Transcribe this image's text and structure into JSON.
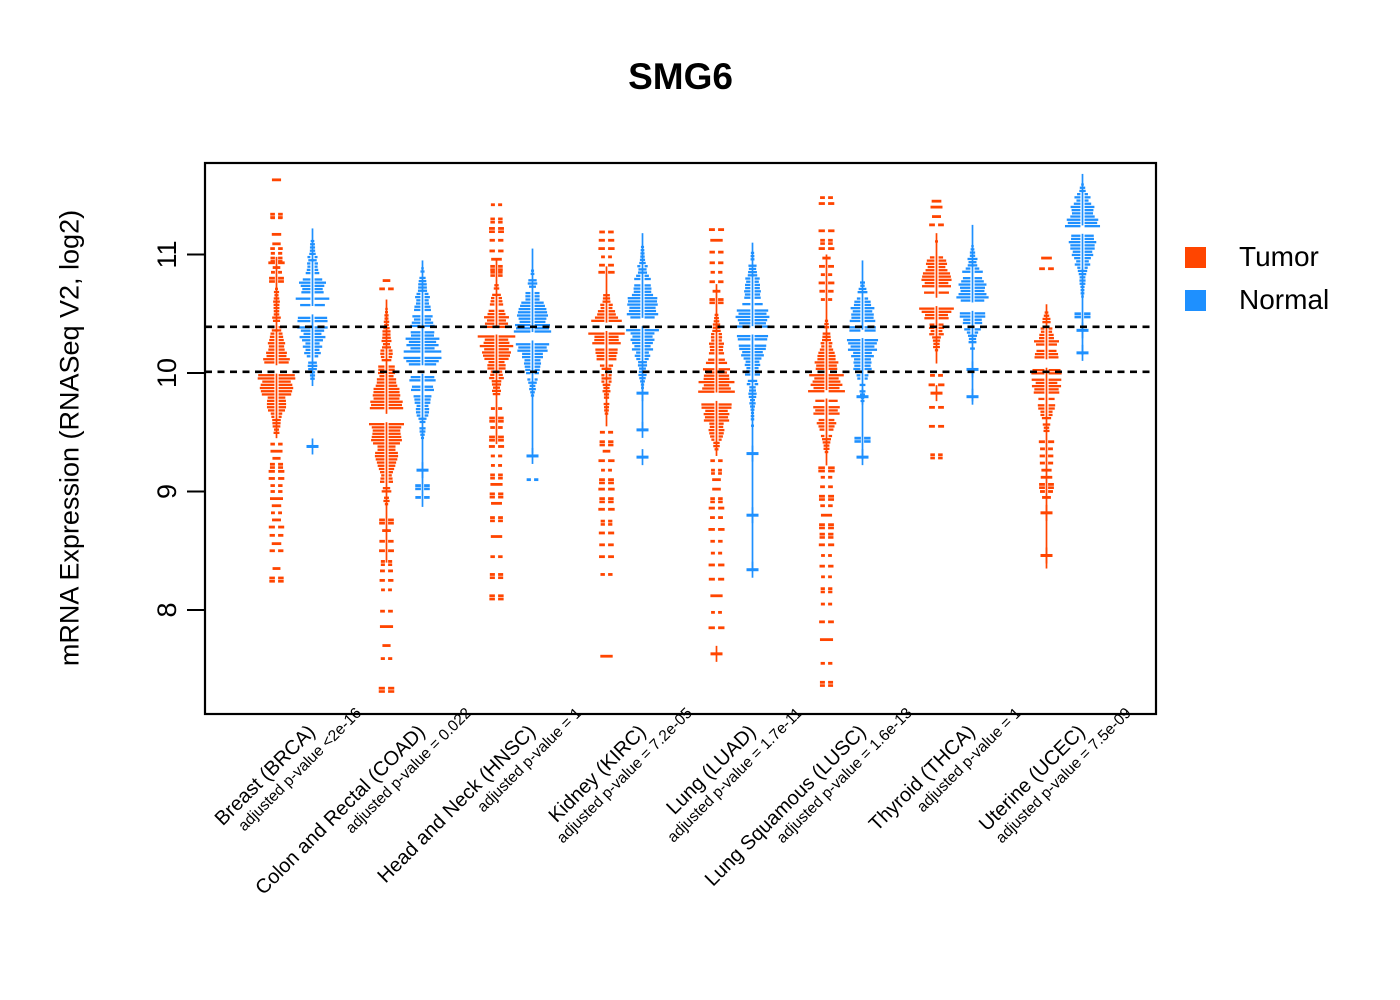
{
  "title": "SMG6",
  "y_axis": {
    "label": "mRNA Expression (RNASeq V2, log2)",
    "ticks": [
      8,
      9,
      10,
      11
    ]
  },
  "legend": {
    "items": [
      {
        "label": "Tumor",
        "color": "#FF4500"
      },
      {
        "label": "Normal",
        "color": "#1E90FF"
      }
    ]
  },
  "chart_data": {
    "type": "violin",
    "title": "SMG6",
    "ylabel": "mRNA Expression (RNASeq V2, log2)",
    "y_ticks": [
      8,
      9,
      10,
      11
    ],
    "ylim": [
      7.1,
      11.8
    ],
    "grid": false,
    "legend_position": "right",
    "reference_lines": [
      10.39,
      10.01
    ],
    "series_colors": {
      "tumor": "#FF4500",
      "normal": "#1E90FF"
    },
    "groups": [
      {
        "label": "Breast (BRCA)",
        "pvalue_label": "adjusted p-value <2e-16",
        "tumor": {
          "median": 10.03,
          "stem": [
            9.45,
            10.98
          ],
          "body": [
            [
              10.72,
              0.12
            ],
            [
              10.5,
              0.22
            ],
            [
              10.3,
              0.38
            ],
            [
              10.15,
              0.75
            ],
            [
              10.03,
              1.0
            ],
            [
              9.9,
              0.9
            ],
            [
              9.75,
              0.6
            ],
            [
              9.6,
              0.3
            ],
            [
              9.48,
              0.12
            ]
          ],
          "outliers": [
            11.63,
            11.34,
            11.31,
            11.17,
            11.09,
            11.05,
            11.01,
            10.97,
            10.93,
            10.89,
            10.85,
            10.8,
            9.4,
            9.34,
            9.28,
            9.23,
            9.17,
            9.11,
            9.05,
            9.0,
            8.94,
            8.88,
            8.82,
            8.76,
            8.7,
            8.63,
            8.56,
            8.5,
            8.35,
            8.27
          ],
          "plus_outliers": []
        },
        "normal": {
          "median": 10.53,
          "stem": [
            9.89,
            11.22
          ],
          "body": [
            [
              11.15,
              0.08
            ],
            [
              11.0,
              0.25
            ],
            [
              10.85,
              0.5
            ],
            [
              10.7,
              0.85
            ],
            [
              10.55,
              1.0
            ],
            [
              10.4,
              0.8
            ],
            [
              10.25,
              0.55
            ],
            [
              10.1,
              0.3
            ],
            [
              9.95,
              0.1
            ]
          ],
          "outliers": [],
          "plus_outliers": [
            9.38
          ]
        }
      },
      {
        "label": "Colon and Rectal (COAD)",
        "pvalue_label": "adjusted p-value = 0.022",
        "tumor": {
          "median": 9.62,
          "stem": [
            8.4,
            10.62
          ],
          "body": [
            [
              10.55,
              0.1
            ],
            [
              10.3,
              0.25
            ],
            [
              10.05,
              0.45
            ],
            [
              9.85,
              0.75
            ],
            [
              9.65,
              1.0
            ],
            [
              9.45,
              0.8
            ],
            [
              9.25,
              0.5
            ],
            [
              9.05,
              0.3
            ],
            [
              8.9,
              0.12
            ]
          ],
          "outliers": [
            10.78,
            10.71,
            8.76,
            8.67,
            8.58,
            8.5,
            8.41,
            8.33,
            8.25,
            8.17,
            7.99,
            7.86,
            7.7,
            7.59,
            7.34
          ],
          "plus_outliers": []
        },
        "normal": {
          "median": 10.03,
          "stem": [
            8.87,
            10.95
          ],
          "body": [
            [
              10.92,
              0.07
            ],
            [
              10.7,
              0.3
            ],
            [
              10.5,
              0.6
            ],
            [
              10.3,
              0.9
            ],
            [
              10.12,
              1.0
            ],
            [
              9.95,
              0.75
            ],
            [
              9.8,
              0.5
            ],
            [
              9.62,
              0.25
            ],
            [
              9.46,
              0.1
            ]
          ],
          "outliers": [
            9.05,
            8.95
          ],
          "plus_outliers": [
            9.18
          ]
        }
      },
      {
        "label": "Head and Neck (HNSC)",
        "pvalue_label": "adjusted p-value = 1",
        "tumor": {
          "median": 10.36,
          "stem": [
            9.4,
            10.95
          ],
          "body": [
            [
              10.75,
              0.12
            ],
            [
              10.6,
              0.35
            ],
            [
              10.48,
              0.7
            ],
            [
              10.36,
              1.0
            ],
            [
              10.2,
              0.8
            ],
            [
              10.05,
              0.5
            ],
            [
              9.9,
              0.3
            ],
            [
              9.78,
              0.15
            ]
          ],
          "outliers": [
            11.42,
            11.3,
            11.22,
            11.12,
            11.03,
            10.96,
            10.9,
            10.85,
            9.7,
            9.62,
            9.54,
            9.46,
            9.38,
            9.3,
            9.22,
            9.14,
            9.06,
            8.98,
            8.9,
            8.78,
            8.62,
            8.45,
            8.3,
            8.12
          ],
          "plus_outliers": []
        },
        "normal": {
          "median": 10.31,
          "stem": [
            9.32,
            11.05
          ],
          "body": [
            [
              10.9,
              0.08
            ],
            [
              10.72,
              0.3
            ],
            [
              10.55,
              0.7
            ],
            [
              10.38,
              1.0
            ],
            [
              10.22,
              0.85
            ],
            [
              10.07,
              0.55
            ],
            [
              9.92,
              0.25
            ],
            [
              9.8,
              0.1
            ]
          ],
          "outliers": [
            9.1
          ],
          "plus_outliers": [
            9.3
          ]
        }
      },
      {
        "label": "Kidney (KIRC)",
        "pvalue_label": "adjusted p-value = 7.2e-05",
        "tumor": {
          "median": 10.39,
          "stem": [
            9.55,
            10.9
          ],
          "body": [
            [
              10.72,
              0.1
            ],
            [
              10.6,
              0.3
            ],
            [
              10.48,
              0.7
            ],
            [
              10.36,
              1.0
            ],
            [
              10.22,
              0.7
            ],
            [
              10.05,
              0.4
            ],
            [
              9.85,
              0.2
            ],
            [
              9.65,
              0.1
            ]
          ],
          "outliers": [
            11.19,
            11.12,
            11.05,
            10.98,
            10.91,
            10.85,
            9.5,
            9.42,
            9.34,
            9.26,
            9.18,
            9.1,
            9.02,
            8.94,
            8.85,
            8.75,
            8.65,
            8.55,
            8.45,
            8.3,
            7.61
          ],
          "plus_outliers": []
        },
        "normal": {
          "median": 10.43,
          "stem": [
            9.52,
            11.18
          ],
          "body": [
            [
              11.1,
              0.06
            ],
            [
              10.92,
              0.25
            ],
            [
              10.75,
              0.55
            ],
            [
              10.58,
              0.9
            ],
            [
              10.42,
              1.0
            ],
            [
              10.25,
              0.65
            ],
            [
              10.1,
              0.35
            ],
            [
              9.95,
              0.15
            ],
            [
              9.87,
              0.07
            ]
          ],
          "outliers": [],
          "plus_outliers": [
            9.83,
            9.52,
            9.29
          ]
        }
      },
      {
        "label": "Lung (LUAD)",
        "pvalue_label": "adjusted p-value = 1.7e-11",
        "tumor": {
          "median": 9.8,
          "stem": [
            9.3,
            10.75
          ],
          "body": [
            [
              10.5,
              0.1
            ],
            [
              10.32,
              0.3
            ],
            [
              10.15,
              0.55
            ],
            [
              10.0,
              0.85
            ],
            [
              9.85,
              1.0
            ],
            [
              9.7,
              0.85
            ],
            [
              9.57,
              0.55
            ],
            [
              9.45,
              0.3
            ],
            [
              9.36,
              0.12
            ]
          ],
          "outliers": [
            11.21,
            11.12,
            11.02,
            10.93,
            10.85,
            10.77,
            10.69,
            10.62,
            9.26,
            9.18,
            9.1,
            9.02,
            8.94,
            8.86,
            8.78,
            8.68,
            8.58,
            8.48,
            8.38,
            8.26,
            8.12,
            7.98,
            7.85
          ],
          "plus_outliers": [
            7.63
          ]
        },
        "normal": {
          "median": 10.36,
          "stem": [
            8.34,
            11.1
          ],
          "body": [
            [
              11.05,
              0.06
            ],
            [
              10.88,
              0.25
            ],
            [
              10.7,
              0.55
            ],
            [
              10.52,
              0.9
            ],
            [
              10.36,
              1.0
            ],
            [
              10.2,
              0.7
            ],
            [
              10.05,
              0.45
            ],
            [
              9.88,
              0.25
            ],
            [
              9.7,
              0.12
            ],
            [
              9.5,
              0.06
            ]
          ],
          "outliers": [],
          "plus_outliers": [
            9.32,
            8.8,
            8.34
          ]
        }
      },
      {
        "label": "Lung Squamous (LUSC)",
        "pvalue_label": "adjusted p-value = 1.6e-13",
        "tumor": {
          "median": 9.82,
          "stem": [
            9.22,
            11.0
          ],
          "body": [
            [
              10.45,
              0.1
            ],
            [
              10.28,
              0.3
            ],
            [
              10.12,
              0.6
            ],
            [
              9.98,
              0.9
            ],
            [
              9.85,
              1.0
            ],
            [
              9.7,
              0.8
            ],
            [
              9.55,
              0.5
            ],
            [
              9.42,
              0.25
            ],
            [
              9.32,
              0.1
            ]
          ],
          "outliers": [
            11.48,
            11.43,
            11.2,
            11.12,
            11.05,
            10.97,
            10.9,
            10.83,
            10.76,
            10.69,
            10.62,
            9.2,
            9.12,
            9.04,
            8.96,
            8.88,
            8.8,
            8.72,
            8.64,
            8.55,
            8.46,
            8.37,
            8.28,
            8.18,
            8.05,
            7.9,
            7.75,
            7.55,
            7.39
          ],
          "plus_outliers": []
        },
        "normal": {
          "median": 10.33,
          "stem": [
            9.27,
            10.95
          ],
          "body": [
            [
              10.8,
              0.08
            ],
            [
              10.65,
              0.35
            ],
            [
              10.5,
              0.75
            ],
            [
              10.35,
              1.0
            ],
            [
              10.2,
              0.8
            ],
            [
              10.05,
              0.5
            ],
            [
              9.9,
              0.22
            ],
            [
              9.75,
              0.1
            ]
          ],
          "outliers": [
            9.45
          ],
          "plus_outliers": [
            9.8,
            9.29
          ]
        }
      },
      {
        "label": "Thyroid (THCA)",
        "pvalue_label": "adjusted p-value = 1",
        "tumor": {
          "median": 10.6,
          "stem": [
            10.08,
            11.18
          ],
          "body": [
            [
              11.12,
              0.1
            ],
            [
              11.0,
              0.4
            ],
            [
              10.85,
              0.8
            ],
            [
              10.7,
              1.0
            ],
            [
              10.55,
              0.9
            ],
            [
              10.42,
              0.55
            ],
            [
              10.3,
              0.3
            ],
            [
              10.2,
              0.12
            ]
          ],
          "outliers": [
            11.45,
            11.4,
            11.32,
            11.25,
            9.98,
            9.9,
            9.71,
            9.55,
            9.31
          ],
          "plus_outliers": [
            9.83
          ]
        },
        "normal": {
          "median": 10.56,
          "stem": [
            9.76,
            11.25
          ],
          "body": [
            [
              11.08,
              0.08
            ],
            [
              10.95,
              0.3
            ],
            [
              10.82,
              0.65
            ],
            [
              10.68,
              1.0
            ],
            [
              10.55,
              0.85
            ],
            [
              10.42,
              0.55
            ],
            [
              10.3,
              0.3
            ],
            [
              10.2,
              0.12
            ]
          ],
          "outliers": [],
          "plus_outliers": [
            10.03,
            9.8
          ]
        }
      },
      {
        "label": "Uterine (UCEC)",
        "pvalue_label": "adjusted p-value = 7.5e-09",
        "tumor": {
          "median": 10.08,
          "stem": [
            8.35,
            10.58
          ],
          "body": [
            [
              10.52,
              0.12
            ],
            [
              10.38,
              0.4
            ],
            [
              10.25,
              0.7
            ],
            [
              10.1,
              1.0
            ],
            [
              9.95,
              0.85
            ],
            [
              9.8,
              0.6
            ],
            [
              9.65,
              0.35
            ],
            [
              9.52,
              0.15
            ]
          ],
          "outliers": [
            10.97,
            10.88,
            9.42,
            9.36,
            9.3,
            9.24,
            9.18,
            9.12,
            9.06,
            9.0,
            8.95
          ],
          "plus_outliers": [
            8.82,
            8.46
          ]
        },
        "normal": {
          "median": 11.21,
          "stem": [
            10.15,
            11.68
          ],
          "body": [
            [
              11.6,
              0.1
            ],
            [
              11.48,
              0.45
            ],
            [
              11.35,
              0.8
            ],
            [
              11.22,
              1.0
            ],
            [
              11.08,
              0.75
            ],
            [
              10.95,
              0.45
            ],
            [
              10.8,
              0.2
            ],
            [
              10.65,
              0.08
            ]
          ],
          "outliers": [
            10.5
          ],
          "plus_outliers": [
            10.36,
            10.17
          ]
        }
      }
    ]
  }
}
